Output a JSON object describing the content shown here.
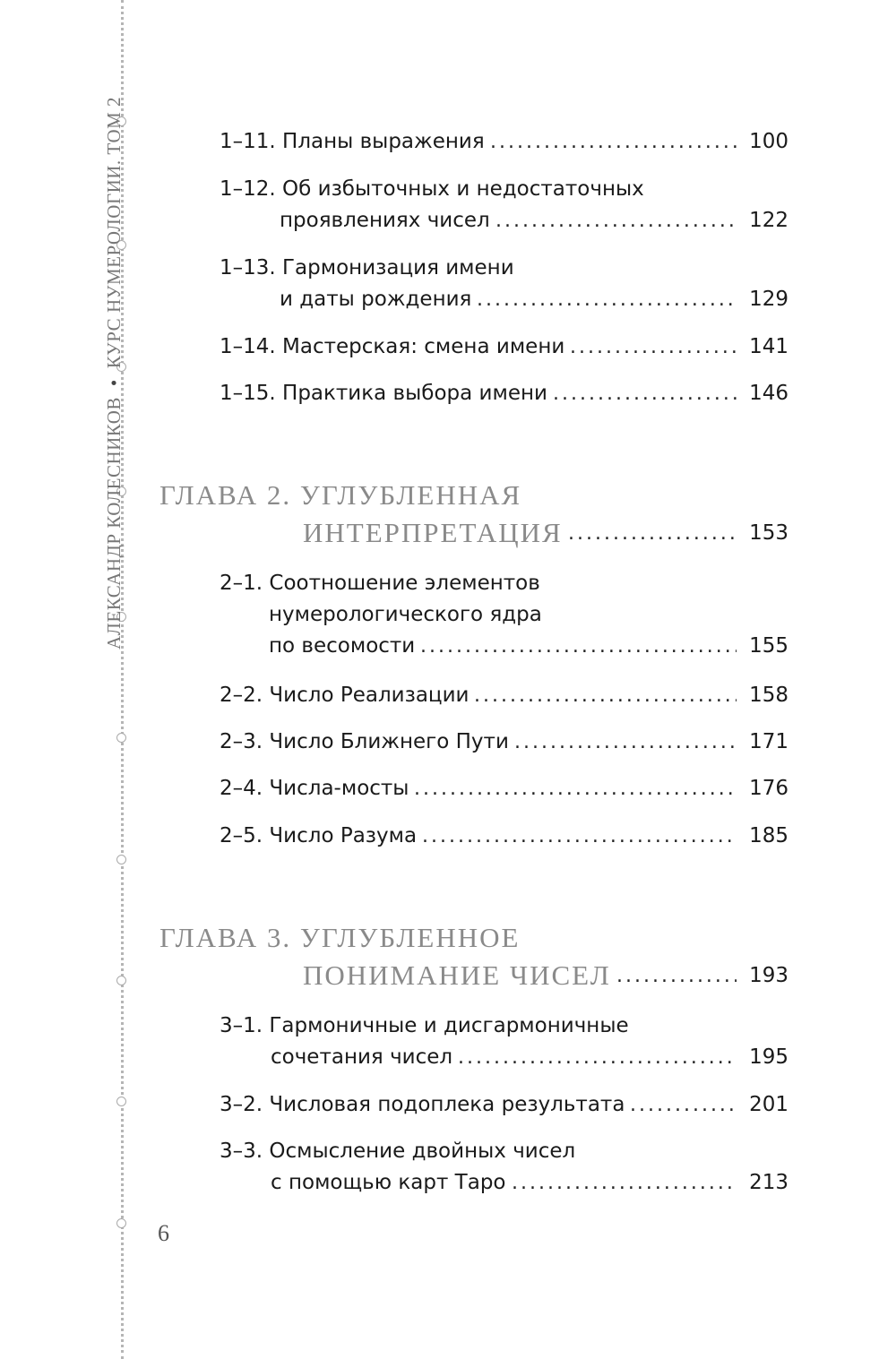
{
  "running_head": {
    "author": "АЛЕКСАНДР КОЛЕСНИКОВ",
    "separator": "•",
    "title": "КУРС НУМЕРОЛОГИИ. ТОМ 2"
  },
  "entries": [
    {
      "lines": [
        "1–11. Планы выражения"
      ],
      "page": "100"
    },
    {
      "lines": [
        "1–12. Об избыточных и недостаточных",
        "проявлениях чисел"
      ],
      "page": "122"
    },
    {
      "lines": [
        "1–13. Гармонизация имени",
        "и даты рождения"
      ],
      "page": "129"
    },
    {
      "lines": [
        "1–14. Мастерская: смена имени"
      ],
      "page": "141"
    },
    {
      "lines": [
        "1–15. Практика выбора имени"
      ],
      "page": "146"
    },
    {
      "chapter": true,
      "lines": [
        "ГЛАВА 2. УГЛУБЛЕННАЯ",
        "ИНТЕРПРЕТАЦИЯ"
      ],
      "page": "153"
    },
    {
      "lines": [
        "2–1. Соотношение элементов",
        "нумерологического ядра",
        "по весомости"
      ],
      "page": "155"
    },
    {
      "lines": [
        "2–2. Число Реализации"
      ],
      "page": "158"
    },
    {
      "lines": [
        "2–3. Число Ближнего Пути"
      ],
      "page": "171"
    },
    {
      "lines": [
        "2–4. Числа-мосты"
      ],
      "page": "176"
    },
    {
      "lines": [
        "2–5. Число Разума"
      ],
      "page": "185"
    },
    {
      "chapter": true,
      "lines": [
        "ГЛАВА 3. УГЛУБЛЕННОЕ",
        "ПОНИМАНИЕ ЧИСЕЛ"
      ],
      "page": "193"
    },
    {
      "lines": [
        "3–1. Гармоничные и дисгармоничные",
        "сочетания чисел"
      ],
      "page": "195"
    },
    {
      "lines": [
        "3–2. Числовая подоплека результата"
      ],
      "page": "201"
    },
    {
      "lines": [
        "3–3. Осмысление двойных чисел",
        "с помощью карт Таро"
      ],
      "page": "213"
    }
  ],
  "folio": "6"
}
